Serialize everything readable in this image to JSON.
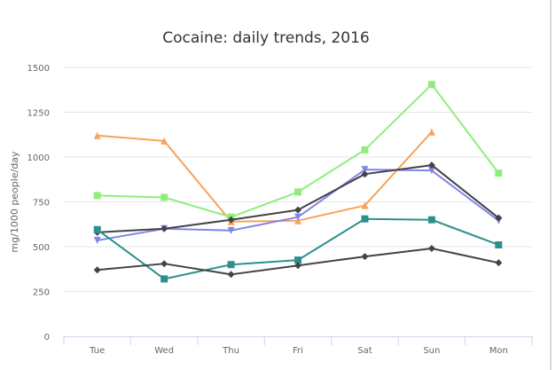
{
  "chart_data": {
    "type": "line",
    "title": "Cocaine: daily trends, 2016",
    "xlabel": "",
    "ylabel": "mg/1000 people/day",
    "categories": [
      "Tue",
      "Wed",
      "Thu",
      "Fri",
      "Sat",
      "Sun",
      "Mon"
    ],
    "ylim": [
      0,
      1500
    ],
    "yticks": [
      0,
      250,
      500,
      750,
      1000,
      1250,
      1500
    ],
    "grid": true,
    "legend": "none",
    "series": [
      {
        "color": "#f7a35c",
        "marker": "triangle",
        "values": [
          1120,
          1090,
          640,
          645,
          730,
          1140,
          null
        ]
      },
      {
        "color": "#90ed7d",
        "marker": "square",
        "values": [
          785,
          775,
          665,
          805,
          1040,
          1405,
          910
        ]
      },
      {
        "color": "#8085e9",
        "marker": "triangle-down",
        "values": [
          535,
          600,
          590,
          665,
          930,
          925,
          645
        ]
      },
      {
        "color": "#434348",
        "marker": "diamond",
        "values": [
          580,
          600,
          650,
          705,
          905,
          955,
          660
        ]
      },
      {
        "color": "#2b908f",
        "marker": "square",
        "values": [
          595,
          320,
          400,
          425,
          655,
          650,
          510
        ]
      },
      {
        "color": "#434348",
        "marker": "diamond",
        "values": [
          370,
          405,
          345,
          395,
          445,
          490,
          410
        ]
      }
    ]
  }
}
